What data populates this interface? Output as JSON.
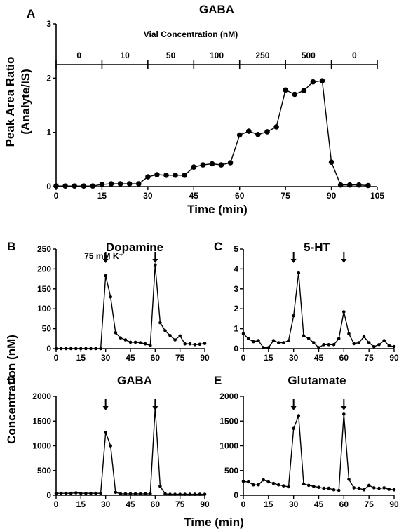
{
  "chart_data": [
    {
      "id": "A",
      "type": "line",
      "panel_letter": "A",
      "title": "GABA",
      "xlabel": "Time (min)",
      "ylabel": [
        "Peak Area Ratio",
        "(Analyte/IS)"
      ],
      "xlim": [
        0,
        105
      ],
      "ylim": [
        0,
        3
      ],
      "xticks": [
        0,
        15,
        30,
        45,
        60,
        75,
        90,
        105
      ],
      "yticks": [
        0,
        1,
        2,
        3
      ],
      "series": [
        {
          "x": [
            0,
            3,
            6,
            9,
            12,
            15,
            18,
            21,
            24,
            27,
            30,
            33,
            36,
            39,
            42,
            45,
            48,
            51,
            54,
            57,
            60,
            63,
            66,
            69,
            72,
            75,
            78,
            81,
            84,
            87,
            90,
            93,
            96,
            99,
            102
          ],
          "values": [
            0.01,
            0.01,
            0.01,
            0.01,
            0.01,
            0.04,
            0.05,
            0.05,
            0.05,
            0.05,
            0.18,
            0.22,
            0.21,
            0.21,
            0.21,
            0.36,
            0.4,
            0.42,
            0.4,
            0.44,
            0.95,
            1.02,
            0.96,
            1.01,
            1.1,
            1.78,
            1.7,
            1.77,
            1.93,
            1.95,
            0.45,
            0.03,
            0.03,
            0.03,
            0.02
          ]
        }
      ],
      "annotation": {
        "title": "Vial Concentration (nM)",
        "segments": [
          {
            "label": "0",
            "from": 0,
            "to": 15
          },
          {
            "label": "10",
            "from": 15,
            "to": 30
          },
          {
            "label": "50",
            "from": 30,
            "to": 45
          },
          {
            "label": "100",
            "from": 45,
            "to": 60
          },
          {
            "label": "250",
            "from": 60,
            "to": 75
          },
          {
            "label": "500",
            "from": 75,
            "to": 90
          },
          {
            "label": "0",
            "from": 90,
            "to": 105
          }
        ]
      }
    },
    {
      "id": "B",
      "type": "line",
      "panel_letter": "B",
      "title": "Dopamine",
      "xlim": [
        0,
        90
      ],
      "ylim": [
        0,
        250
      ],
      "xticks": [
        0,
        15,
        30,
        45,
        60,
        75,
        90
      ],
      "yticks": [
        0,
        50,
        100,
        150,
        200,
        250
      ],
      "stimulus_times": [
        30,
        60
      ],
      "stimulus_label": "75 mM K⁺",
      "series": [
        {
          "x": [
            0,
            3,
            6,
            9,
            12,
            15,
            18,
            21,
            24,
            27,
            30,
            33,
            36,
            39,
            42,
            45,
            48,
            51,
            54,
            57,
            60,
            63,
            66,
            69,
            72,
            75,
            78,
            81,
            84,
            87,
            90
          ],
          "values": [
            0,
            0,
            0,
            0,
            0,
            0,
            0,
            0,
            0,
            0,
            183,
            130,
            40,
            27,
            22,
            16,
            16,
            15,
            12,
            8,
            210,
            65,
            45,
            33,
            22,
            32,
            12,
            12,
            10,
            11,
            13
          ]
        }
      ]
    },
    {
      "id": "C",
      "type": "line",
      "panel_letter": "C",
      "title": "5-HT",
      "xlim": [
        0,
        90
      ],
      "ylim": [
        0,
        5
      ],
      "xticks": [
        0,
        15,
        30,
        45,
        60,
        75,
        90
      ],
      "yticks": [
        0,
        1,
        2,
        3,
        4,
        5
      ],
      "stimulus_times": [
        30,
        60
      ],
      "series": [
        {
          "x": [
            0,
            3,
            6,
            9,
            12,
            15,
            18,
            21,
            24,
            27,
            30,
            33,
            36,
            39,
            42,
            45,
            48,
            51,
            54,
            57,
            60,
            63,
            66,
            69,
            72,
            75,
            78,
            81,
            84,
            87,
            90
          ],
          "values": [
            0.75,
            0.5,
            0.35,
            0.4,
            0.05,
            0.05,
            0.4,
            0.3,
            0.3,
            0.4,
            1.65,
            3.8,
            0.65,
            0.5,
            0.3,
            0.05,
            0.2,
            0.2,
            0.2,
            0.5,
            1.85,
            0.75,
            0.25,
            0.3,
            0.6,
            0.3,
            0.1,
            0.2,
            0.4,
            0.15,
            0.1
          ]
        }
      ]
    },
    {
      "id": "D",
      "type": "line",
      "panel_letter": "D",
      "title": "GABA",
      "xlim": [
        0,
        90
      ],
      "ylim": [
        0,
        2000
      ],
      "xticks": [
        0,
        15,
        30,
        45,
        60,
        75,
        90
      ],
      "yticks": [
        0,
        500,
        1000,
        1500,
        2000
      ],
      "stimulus_times": [
        30,
        60
      ],
      "series": [
        {
          "x": [
            0,
            3,
            6,
            9,
            12,
            15,
            18,
            21,
            24,
            27,
            30,
            33,
            36,
            39,
            42,
            45,
            48,
            51,
            54,
            57,
            60,
            63,
            66,
            69,
            72,
            75,
            78,
            81,
            84,
            87,
            90
          ],
          "values": [
            40,
            40,
            40,
            40,
            50,
            40,
            40,
            40,
            40,
            40,
            1270,
            1000,
            60,
            30,
            30,
            30,
            30,
            30,
            30,
            30,
            1770,
            180,
            30,
            20,
            20,
            20,
            20,
            20,
            20,
            20,
            20
          ]
        }
      ]
    },
    {
      "id": "E",
      "type": "line",
      "panel_letter": "E",
      "title": "Glutamate",
      "xlim": [
        0,
        90
      ],
      "ylim": [
        0,
        2000
      ],
      "xticks": [
        0,
        15,
        30,
        45,
        60,
        75,
        90
      ],
      "yticks": [
        0,
        500,
        1000,
        1500,
        2000
      ],
      "stimulus_times": [
        30,
        60
      ],
      "series": [
        {
          "x": [
            0,
            3,
            6,
            9,
            12,
            15,
            18,
            21,
            24,
            27,
            30,
            33,
            36,
            39,
            42,
            45,
            48,
            51,
            54,
            57,
            60,
            63,
            66,
            69,
            72,
            75,
            78,
            81,
            84,
            87,
            90
          ],
          "values": [
            280,
            270,
            210,
            210,
            310,
            270,
            240,
            210,
            190,
            170,
            1350,
            1610,
            230,
            200,
            180,
            160,
            140,
            140,
            110,
            100,
            1640,
            320,
            150,
            140,
            110,
            200,
            150,
            140,
            150,
            120,
            110
          ]
        }
      ]
    }
  ],
  "shared_labels": {
    "y_concentration": "Concentration (nM)",
    "x_time": "Time (min)"
  }
}
